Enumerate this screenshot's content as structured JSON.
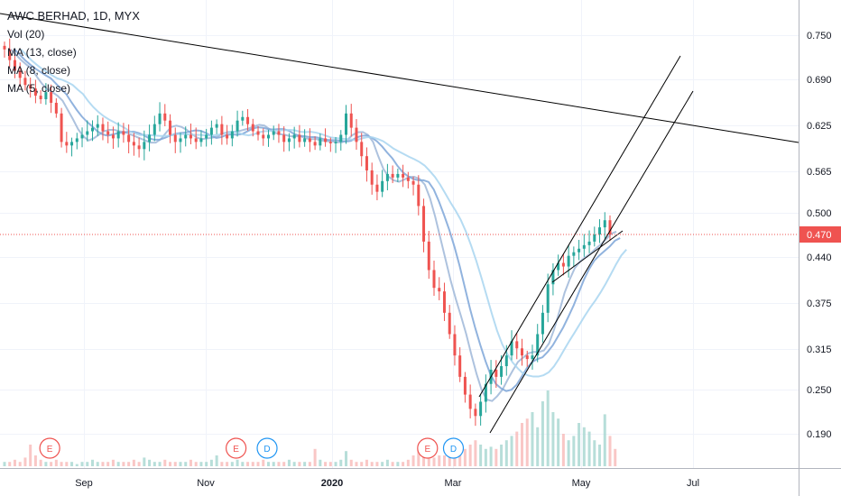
{
  "chart_data": {
    "type": "candlestick",
    "title": "AWC BERHAD, 1D, MYX",
    "indicators": [
      "Vol (20)",
      "MA (13, close)",
      "MA (8, close)",
      "MA (5, close)"
    ],
    "y_ticks": [
      "0.750",
      "0.690",
      "0.625",
      "0.565",
      "0.500",
      "0.440",
      "0.375",
      "0.315",
      "0.250",
      "0.190"
    ],
    "y_range": [
      0.15,
      0.8
    ],
    "last_price": "0.470",
    "x_ticks": [
      {
        "label": "Sep",
        "bold": false
      },
      {
        "label": "Nov",
        "bold": false
      },
      {
        "label": "2020",
        "bold": true
      },
      {
        "label": "Mar",
        "bold": false
      },
      {
        "label": "May",
        "bold": false
      },
      {
        "label": "Jul",
        "bold": false
      }
    ],
    "price_path": [
      0.73,
      0.715,
      0.7,
      0.69,
      0.68,
      0.675,
      0.665,
      0.66,
      0.67,
      0.655,
      0.64,
      0.6,
      0.595,
      0.6,
      0.605,
      0.61,
      0.615,
      0.62,
      0.625,
      0.615,
      0.61,
      0.605,
      0.615,
      0.61,
      0.6,
      0.595,
      0.59,
      0.6,
      0.61,
      0.625,
      0.64,
      0.63,
      0.61,
      0.6,
      0.605,
      0.61,
      0.605,
      0.6,
      0.605,
      0.61,
      0.62,
      0.625,
      0.61,
      0.605,
      0.615,
      0.63,
      0.635,
      0.625,
      0.615,
      0.61,
      0.605,
      0.61,
      0.615,
      0.61,
      0.6,
      0.605,
      0.61,
      0.6,
      0.605,
      0.6,
      0.595,
      0.605,
      0.6,
      0.598,
      0.6,
      0.61,
      0.64,
      0.62,
      0.6,
      0.58,
      0.56,
      0.54,
      0.53,
      0.545,
      0.555,
      0.55,
      0.555,
      0.55,
      0.545,
      0.54,
      0.51,
      0.46,
      0.42,
      0.395,
      0.39,
      0.36,
      0.33,
      0.3,
      0.27,
      0.245,
      0.225,
      0.215,
      0.235,
      0.26,
      0.28,
      0.27,
      0.285,
      0.3,
      0.32,
      0.31,
      0.3,
      0.295,
      0.3,
      0.33,
      0.36,
      0.4,
      0.42,
      0.43,
      0.425,
      0.44,
      0.445,
      0.45,
      0.455,
      0.46,
      0.47,
      0.48,
      0.49,
      0.47
    ],
    "volume_path": [
      0.02,
      0.02,
      0.03,
      0.02,
      0.04,
      0.1,
      0.05,
      0.03,
      0.02,
      0.02,
      0.03,
      0.02,
      0.02,
      0.02,
      0.01,
      0.02,
      0.02,
      0.03,
      0.02,
      0.02,
      0.02,
      0.03,
      0.02,
      0.02,
      0.02,
      0.03,
      0.02,
      0.04,
      0.03,
      0.02,
      0.02,
      0.03,
      0.02,
      0.02,
      0.02,
      0.02,
      0.03,
      0.02,
      0.02,
      0.02,
      0.03,
      0.05,
      0.02,
      0.02,
      0.02,
      0.03,
      0.02,
      0.02,
      0.02,
      0.02,
      0.03,
      0.02,
      0.02,
      0.02,
      0.02,
      0.03,
      0.02,
      0.02,
      0.02,
      0.02,
      0.08,
      0.03,
      0.02,
      0.02,
      0.02,
      0.03,
      0.07,
      0.03,
      0.02,
      0.02,
      0.03,
      0.02,
      0.02,
      0.02,
      0.03,
      0.02,
      0.02,
      0.02,
      0.03,
      0.05,
      0.08,
      0.06,
      0.04,
      0.04,
      0.05,
      0.05,
      0.06,
      0.05,
      0.07,
      0.08,
      0.1,
      0.12,
      0.1,
      0.08,
      0.09,
      0.08,
      0.1,
      0.12,
      0.14,
      0.16,
      0.2,
      0.22,
      0.25,
      0.18,
      0.3,
      0.35,
      0.25,
      0.22,
      0.15,
      0.12,
      0.14,
      0.2,
      0.18,
      0.16,
      0.12,
      0.1,
      0.24,
      0.14,
      0.08
    ],
    "events": [
      {
        "label": "E",
        "type": "earnings",
        "index": 7
      },
      {
        "label": "E",
        "type": "earnings",
        "index": 43
      },
      {
        "label": "D",
        "type": "dividend",
        "index": 49
      },
      {
        "label": "E",
        "type": "earnings",
        "index": 80
      },
      {
        "label": "D",
        "type": "dividend",
        "index": 85
      }
    ],
    "colors": {
      "up": "#26a69a",
      "down": "#ef5350",
      "ma5": "#9fb7d8",
      "ma8": "#7ea6d8",
      "ma13": "#a8d5f0",
      "earnings": "#ef5350",
      "dividend": "#2196f3",
      "price_line": "#ef5350",
      "trendline": "#000000"
    }
  }
}
